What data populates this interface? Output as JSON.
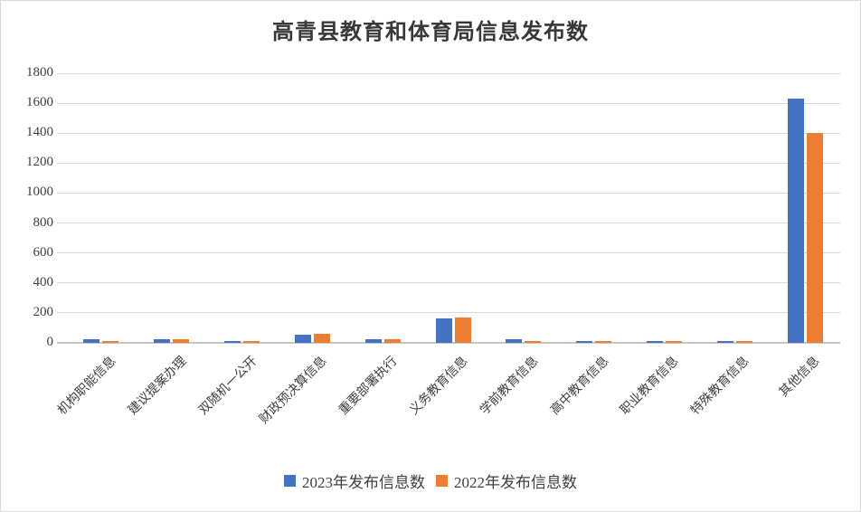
{
  "chart_data": {
    "type": "bar",
    "title": "高青县教育和体育局信息发布数",
    "categories": [
      "机构职能信息",
      "建议提案办理",
      "双随机一公开",
      "财政预决算信息",
      "重要部署执行",
      "义务教育信息",
      "学前教育信息",
      "高中教育信息",
      "职业教育信息",
      "特殊教育信息",
      "其他信息"
    ],
    "series": [
      {
        "name": "2023年发布信息数",
        "color": "#4472C4",
        "values": [
          25,
          25,
          15,
          55,
          22,
          165,
          25,
          15,
          14,
          15,
          1630
        ]
      },
      {
        "name": "2022年发布信息数",
        "color": "#ED7D31",
        "values": [
          12,
          25,
          12,
          60,
          22,
          170,
          12,
          14,
          13,
          14,
          1400
        ]
      }
    ],
    "ylabel": "",
    "xlabel": "",
    "ylim": [
      0,
      1800
    ],
    "ytick_step": 200,
    "yticks": [
      0,
      200,
      400,
      600,
      800,
      1000,
      1200,
      1400,
      1600,
      1800
    ],
    "grid": true,
    "legend_position": "bottom"
  }
}
